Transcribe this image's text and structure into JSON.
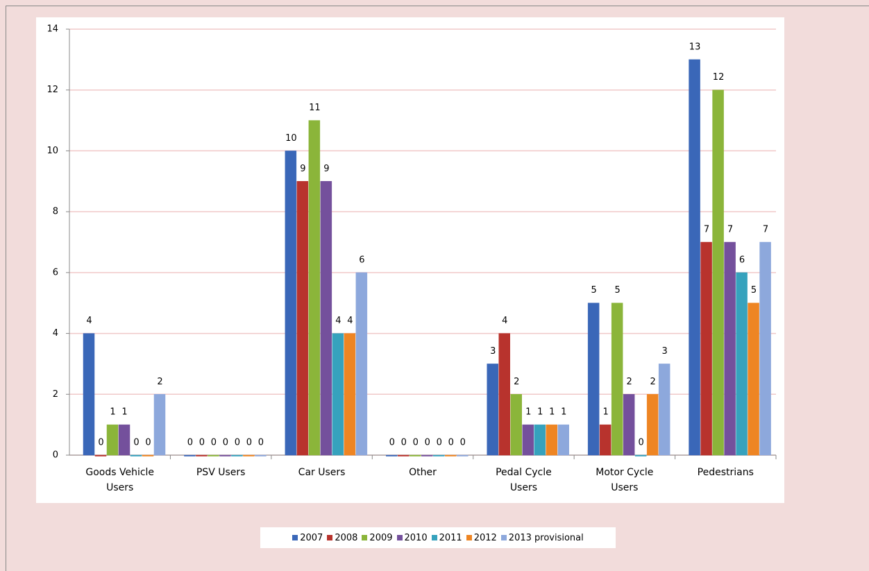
{
  "chart_data": {
    "type": "bar",
    "categories": [
      "Goods Vehicle Users",
      "PSV Users",
      "Car Users",
      "Other",
      "Pedal Cycle Users",
      "Motor Cycle Users",
      "Pedestrians"
    ],
    "series": [
      {
        "name": "2007",
        "color": "#3a67b8",
        "values": [
          4,
          0,
          10,
          0,
          3,
          5,
          13
        ]
      },
      {
        "name": "2008",
        "color": "#b8332d",
        "values": [
          0,
          0,
          9,
          0,
          4,
          1,
          7
        ]
      },
      {
        "name": "2009",
        "color": "#8bb53a",
        "values": [
          1,
          0,
          11,
          0,
          2,
          5,
          12
        ]
      },
      {
        "name": "2010",
        "color": "#74509c",
        "values": [
          1,
          0,
          9,
          0,
          1,
          2,
          7
        ]
      },
      {
        "name": "2011",
        "color": "#36a2bd",
        "values": [
          0,
          0,
          4,
          0,
          1,
          0,
          6
        ]
      },
      {
        "name": "2012",
        "color": "#ee8523",
        "values": [
          0,
          0,
          4,
          0,
          1,
          2,
          5
        ]
      },
      {
        "name": "2013 provisional",
        "color": "#8da8dc",
        "values": [
          2,
          0,
          6,
          0,
          1,
          3,
          7
        ]
      }
    ],
    "ylim": [
      0,
      14
    ],
    "yticks": [
      0,
      2,
      4,
      6,
      8,
      10,
      12,
      14
    ],
    "grid": true,
    "legend": "bottom"
  }
}
